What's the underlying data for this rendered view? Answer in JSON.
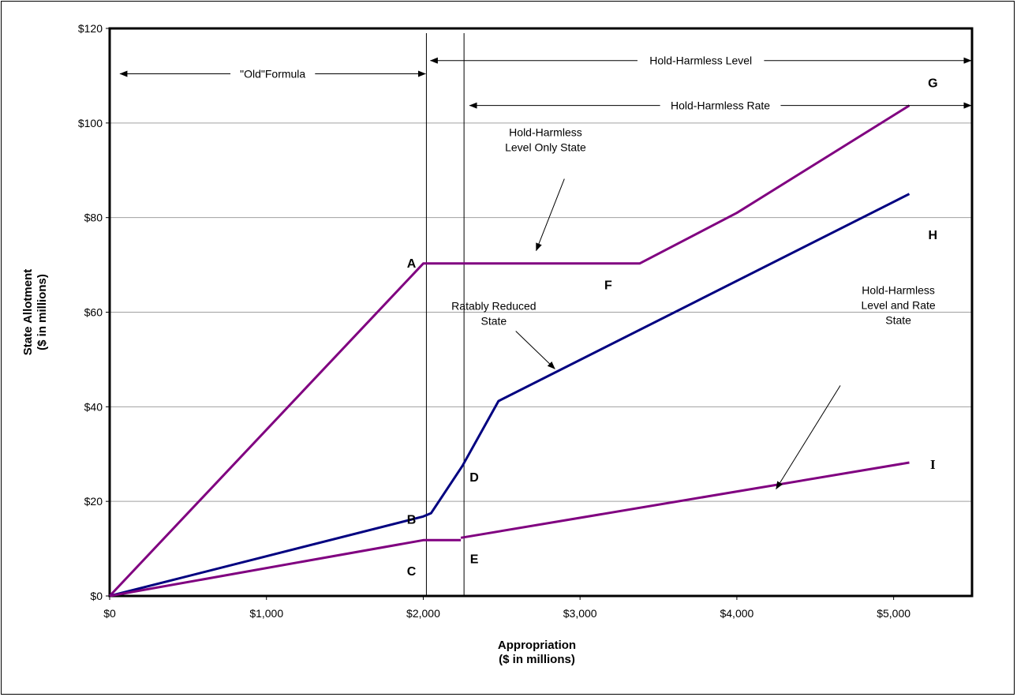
{
  "chart_data": {
    "type": "line",
    "xlabel": [
      "Appropriation",
      "($ in millions)"
    ],
    "ylabel": [
      "State Allotment",
      "($ in millions)"
    ],
    "xlim": [
      0,
      5500
    ],
    "ylim": [
      0,
      120
    ],
    "x_ticks": [
      0,
      1000,
      2000,
      3000,
      4000,
      5000
    ],
    "x_tick_labels": [
      "$0",
      "$1,000",
      "$2,000",
      "$3,000",
      "$4,000",
      "$5,000"
    ],
    "y_ticks": [
      0,
      20,
      40,
      60,
      80,
      100,
      120
    ],
    "y_tick_labels": [
      "$0",
      "$20",
      "$40",
      "$60",
      "$80",
      "$100",
      "$120"
    ],
    "grid": "horizontal",
    "vertical_lines": [
      2020,
      2260
    ],
    "series": [
      {
        "key": "hh_level_only",
        "color": "#800080",
        "points": [
          [
            0,
            0
          ],
          [
            2000,
            70.3
          ],
          [
            3380,
            70.3
          ],
          [
            4000,
            81
          ],
          [
            5100,
            103.7
          ]
        ]
      },
      {
        "key": "ratably_reduced",
        "color": "#000080",
        "points": [
          [
            0,
            0
          ],
          [
            2000,
            16.8
          ],
          [
            2050,
            17.5
          ],
          [
            2250,
            27.5
          ],
          [
            2480,
            41.2
          ],
          [
            5100,
            85
          ]
        ]
      },
      {
        "key": "hh_level_and_rate",
        "color": "#800080",
        "segments": [
          [
            [
              0,
              0
            ],
            [
              2000,
              11.8
            ],
            [
              2240,
              11.8
            ]
          ],
          [
            [
              2240,
              12.3
            ],
            [
              5100,
              28.2
            ]
          ]
        ]
      }
    ],
    "range_arrows": [
      {
        "label": "\"Old\"Formula",
        "from": 60,
        "to": 2020,
        "y": 110.4
      },
      {
        "label": "Hold-Harmless Level",
        "from": 2040,
        "to": 5500,
        "y": 113.2
      },
      {
        "label": "Hold-Harmless Rate",
        "from": 2290,
        "to": 5500,
        "y": 103.7
      }
    ],
    "point_labels": [
      {
        "text": "A",
        "x": 1925,
        "y": 70.4,
        "font": "sans"
      },
      {
        "text": "B",
        "x": 1925,
        "y": 16.3,
        "font": "sans"
      },
      {
        "text": "C",
        "x": 1925,
        "y": 5.3,
        "font": "sans"
      },
      {
        "text": "D",
        "x": 2325,
        "y": 25.2,
        "font": "sans"
      },
      {
        "text": "E",
        "x": 2325,
        "y": 7.9,
        "font": "sans"
      },
      {
        "text": "F",
        "x": 3180,
        "y": 65.8,
        "font": "sans"
      },
      {
        "text": "G",
        "x": 5250,
        "y": 108.6,
        "font": "sans"
      },
      {
        "text": "H",
        "x": 5250,
        "y": 76.4,
        "font": "sans"
      },
      {
        "text": "I",
        "x": 5250,
        "y": 27.9,
        "font": "serif"
      }
    ],
    "annotations": [
      {
        "lines": [
          "Hold-Harmless",
          "Level Only State"
        ],
        "x": 2780,
        "y": 97.2,
        "arrow_from": [
          2900,
          88.2
        ],
        "arrow_to": [
          2720,
          73
        ]
      },
      {
        "lines": [
          "Ratably Reduced",
          "State"
        ],
        "x": 2450,
        "y": 60.5,
        "arrow_from": [
          2590,
          56
        ],
        "arrow_to": [
          2840,
          48
        ]
      },
      {
        "lines": [
          "Hold-Harmless",
          "Level and Rate",
          "State"
        ],
        "x": 5030,
        "y": 63.8,
        "arrow_from": [
          4660,
          44.5
        ],
        "arrow_to": [
          4250,
          22.6
        ]
      }
    ]
  }
}
